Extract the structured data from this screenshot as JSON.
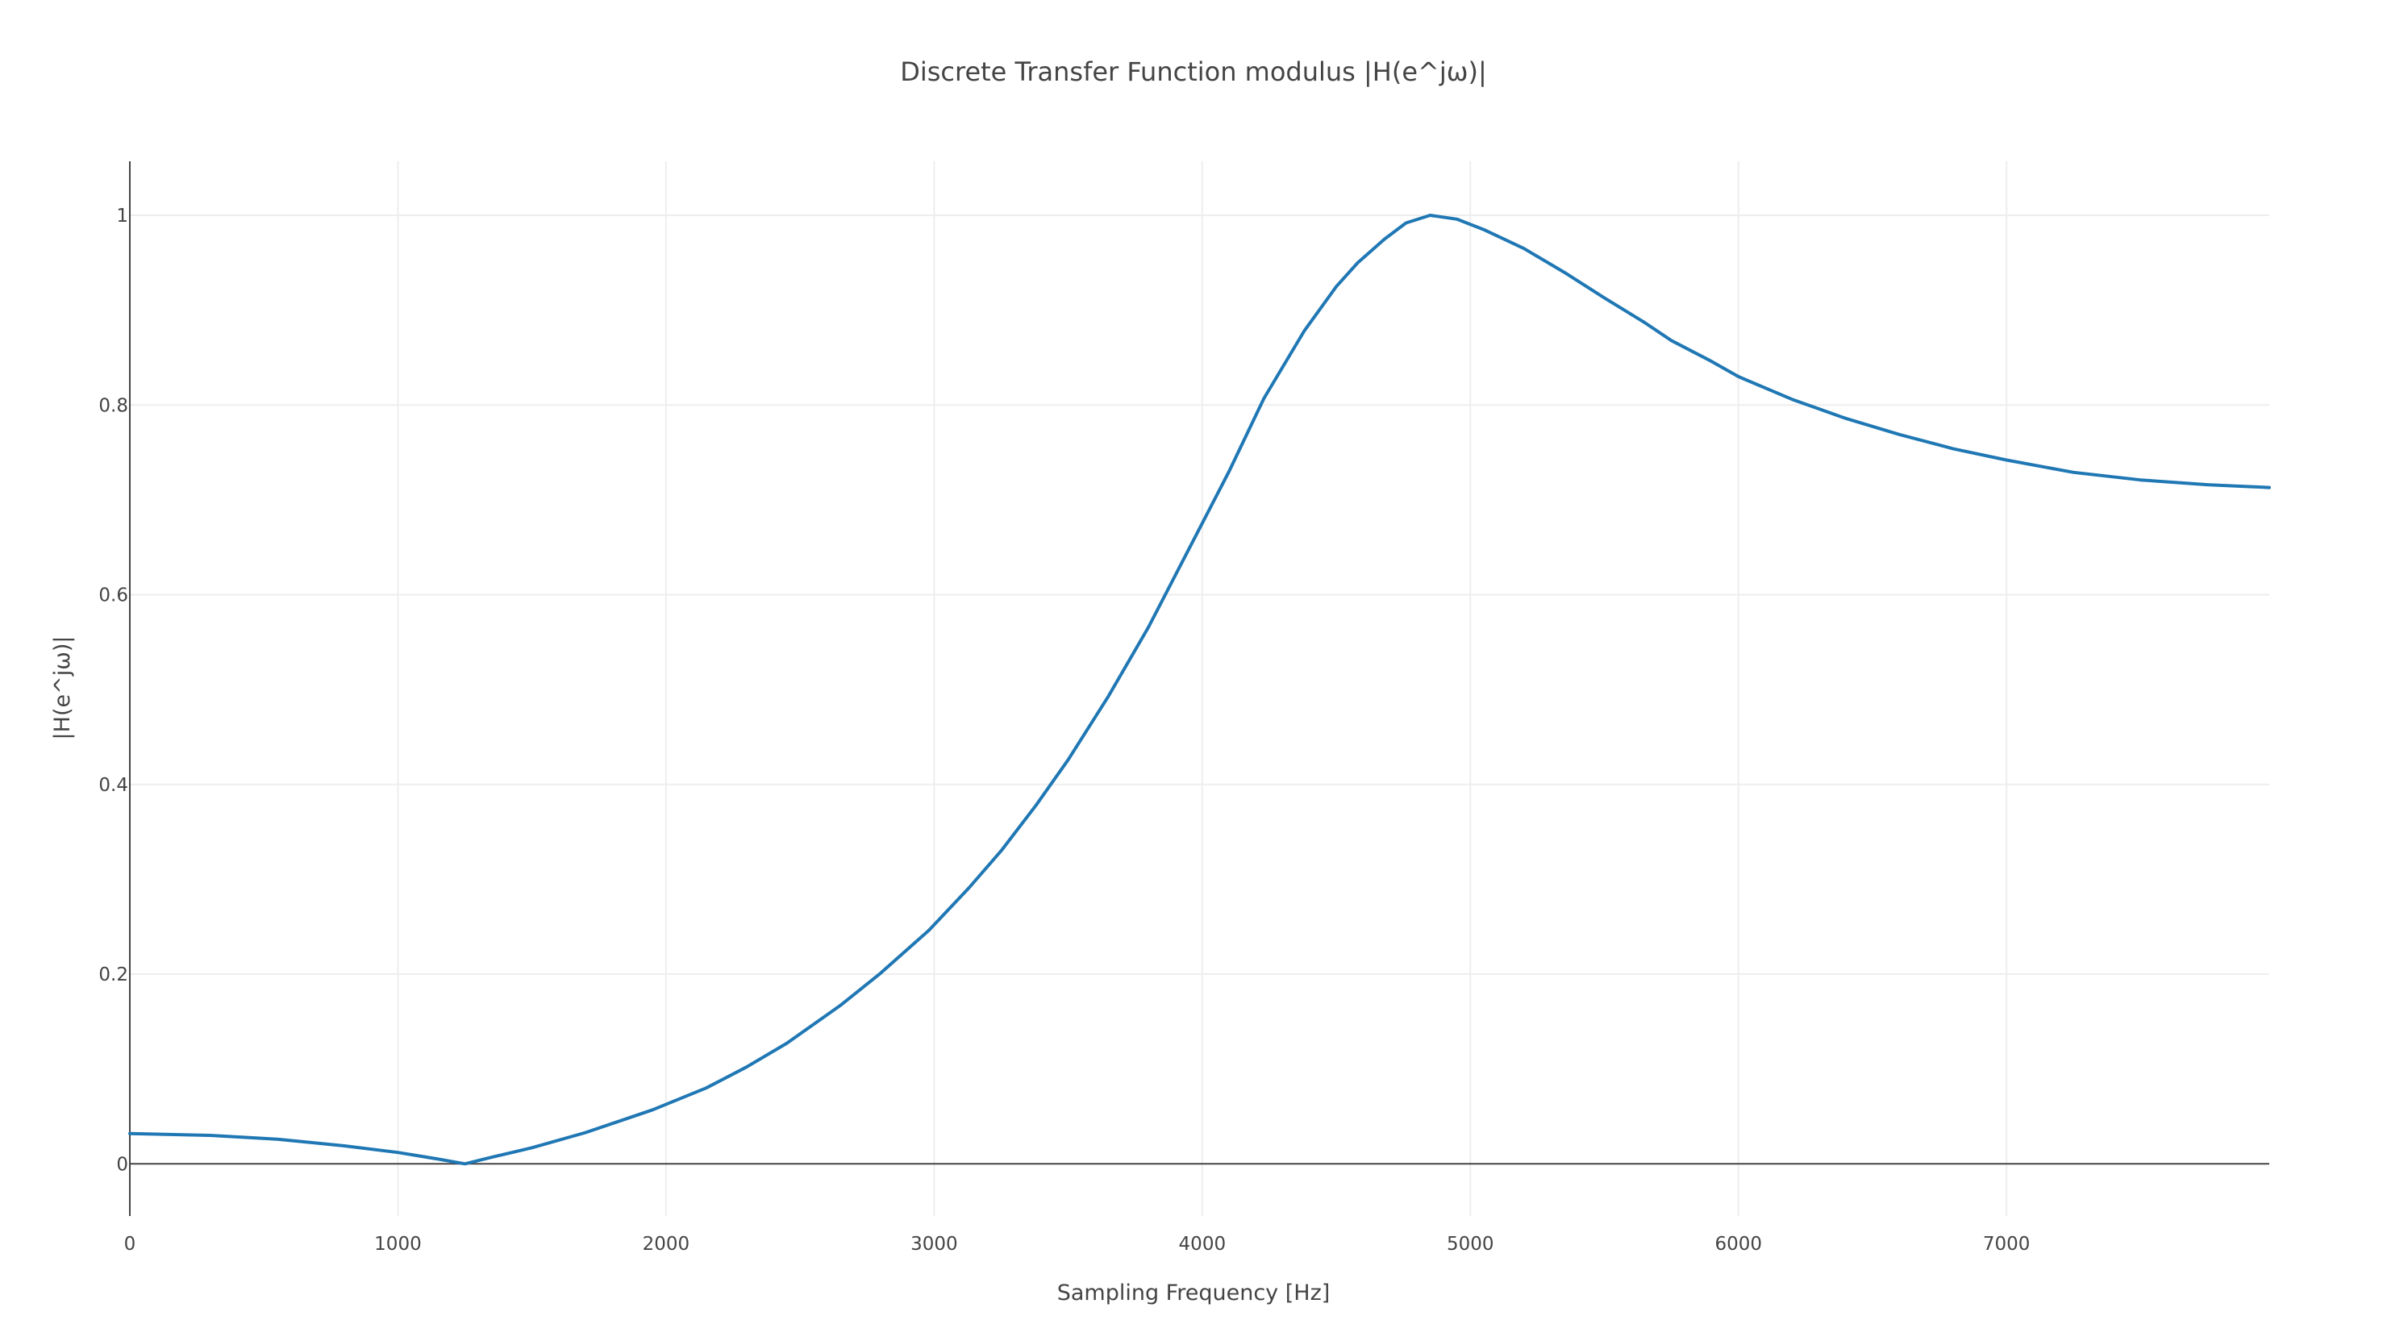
{
  "chart_data": {
    "type": "line",
    "title": "Discrete Transfer Function modulus |H(e^jω)|",
    "xlabel": "Sampling Frequency [Hz]",
    "ylabel": "|H(e^jω)|",
    "xlim": [
      0,
      7980
    ],
    "ylim": [
      -0.055,
      1.057
    ],
    "x_ticks": [
      0,
      1000,
      2000,
      3000,
      4000,
      5000,
      6000,
      7000
    ],
    "x_tick_labels": [
      "0",
      "1000",
      "2000",
      "3000",
      "4000",
      "5000",
      "6000",
      "7000"
    ],
    "y_ticks": [
      0,
      0.2,
      0.4,
      0.6,
      0.8,
      1
    ],
    "y_tick_labels": [
      "0",
      "0.2",
      "0.4",
      "0.6",
      "0.8",
      "1"
    ],
    "grid": true,
    "line_color": "#1f77b4",
    "series": [
      {
        "x": [
          0,
          300,
          550,
          800,
          1000,
          1150,
          1250,
          1350,
          1500,
          1700,
          1950,
          2150,
          2300,
          2450,
          2650,
          2800,
          2980,
          3130,
          3250,
          3380,
          3500,
          3650,
          3800,
          3950,
          4100,
          4230,
          4380,
          4500,
          4580,
          4680,
          4760,
          4850,
          4950,
          5050,
          5200,
          5350,
          5500,
          5650,
          5750,
          5900,
          6000,
          6200,
          6400,
          6600,
          6800,
          7000,
          7250,
          7500,
          7750,
          7980
        ],
        "y": [
          0.032,
          0.03,
          0.026,
          0.019,
          0.012,
          0.005,
          0.0,
          0.007,
          0.017,
          0.033,
          0.057,
          0.08,
          0.102,
          0.127,
          0.167,
          0.201,
          0.246,
          0.291,
          0.33,
          0.378,
          0.426,
          0.493,
          0.566,
          0.648,
          0.73,
          0.807,
          0.878,
          0.925,
          0.95,
          0.975,
          0.992,
          1.0,
          0.996,
          0.985,
          0.965,
          0.94,
          0.913,
          0.887,
          0.868,
          0.846,
          0.83,
          0.806,
          0.786,
          0.769,
          0.754,
          0.742,
          0.729,
          0.721,
          0.716,
          0.713
        ]
      }
    ]
  }
}
